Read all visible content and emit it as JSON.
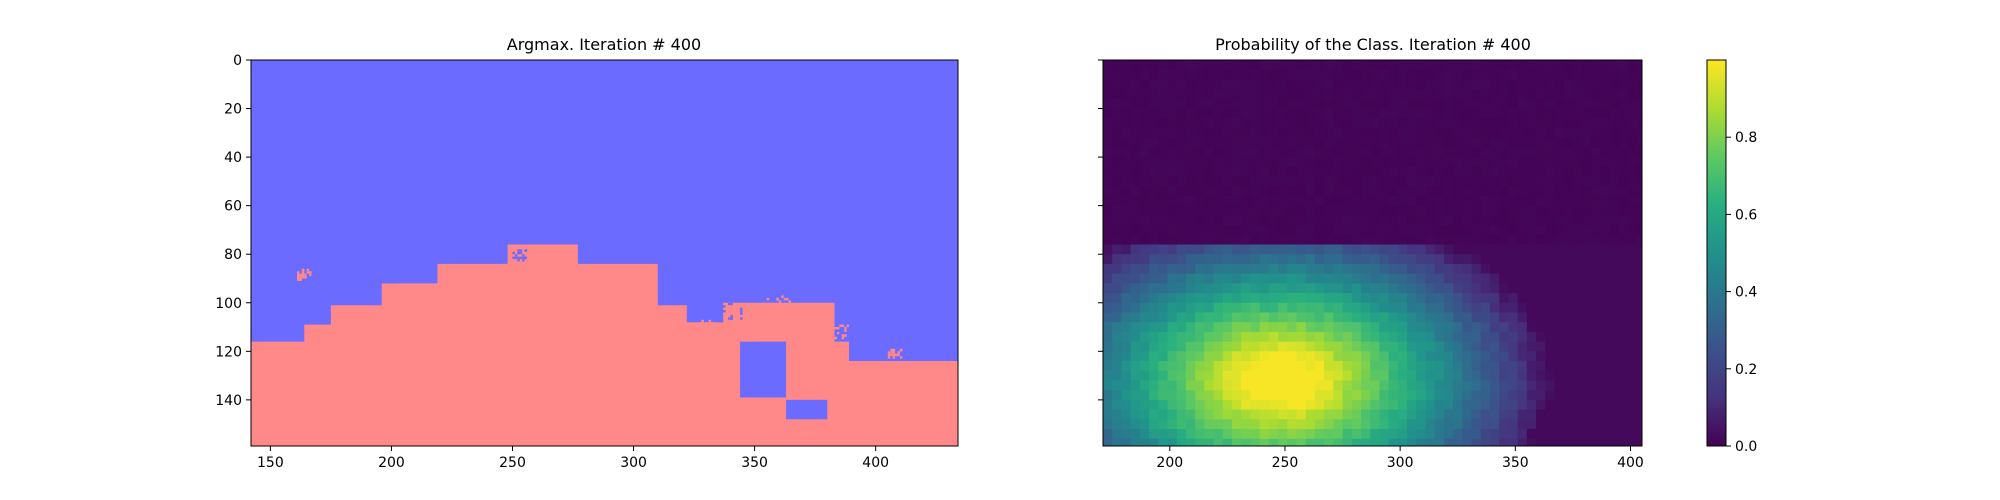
{
  "chart_data": [
    {
      "type": "heatmap",
      "title": "Argmax. Iteration # 400",
      "xlabel": "",
      "ylabel": "",
      "xlim": [
        142,
        434
      ],
      "ylim": [
        159,
        0
      ],
      "xticks": [
        150,
        200,
        250,
        300,
        350,
        400
      ],
      "yticks": [
        0,
        20,
        40,
        60,
        80,
        100,
        120,
        140
      ],
      "classes": [
        {
          "value": 0,
          "color": "#6b6bff"
        },
        {
          "value": 1,
          "color": "#ff8888"
        }
      ],
      "boundary": [
        [
          142,
          116
        ],
        [
          164,
          116
        ],
        [
          164,
          109
        ],
        [
          175,
          109
        ],
        [
          175,
          101
        ],
        [
          196,
          101
        ],
        [
          196,
          92
        ],
        [
          219,
          92
        ],
        [
          219,
          84
        ],
        [
          248,
          84
        ],
        [
          248,
          76
        ],
        [
          277,
          76
        ],
        [
          277,
          84
        ],
        [
          310,
          84
        ],
        [
          310,
          101
        ],
        [
          322,
          101
        ],
        [
          322,
          108
        ],
        [
          337,
          108
        ],
        [
          337,
          100
        ],
        [
          383,
          100
        ],
        [
          383,
          116
        ],
        [
          389,
          116
        ],
        [
          389,
          124
        ],
        [
          434,
          124
        ]
      ],
      "holes": [
        {
          "x": [
            344,
            363
          ],
          "y": [
            116,
            139
          ]
        },
        {
          "x": [
            363,
            380
          ],
          "y": [
            140,
            148
          ]
        },
        {
          "x": [
            164,
            170
          ],
          "y": [
            84,
            90
          ]
        }
      ],
      "grid": false,
      "legend": "none"
    },
    {
      "type": "heatmap",
      "title": "Probability of the Class. Iteration # 400",
      "xlabel": "",
      "ylabel": "",
      "xlim": [
        171,
        405
      ],
      "ylim": [
        159,
        0
      ],
      "xticks": [
        200,
        250,
        300,
        350,
        400
      ],
      "yticks": [
        0,
        20,
        40,
        60,
        80,
        100,
        120,
        140
      ],
      "colormap": "viridis",
      "colorbar": {
        "range": [
          0,
          1
        ],
        "ticks": [
          "0.0",
          "0.2",
          "0.4",
          "0.6",
          "0.8"
        ],
        "tick_values": [
          0,
          0.2,
          0.4,
          0.6,
          0.8
        ]
      },
      "grid": false,
      "legend": "none"
    }
  ]
}
